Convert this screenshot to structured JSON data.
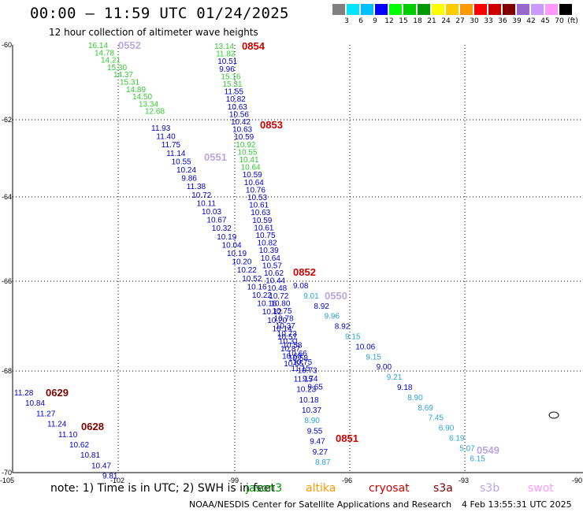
{
  "header": {
    "title": "00:00 – 11:59 UTC 01/24/2025",
    "subtitle": "12 hour collection of altimeter wave heights"
  },
  "colorbar": {
    "unit": "(ft)",
    "colors": [
      "#808080",
      "#00e5ff",
      "#00bfff",
      "#0000ff",
      "#00ff00",
      "#00cc00",
      "#009900",
      "#ffff00",
      "#ffcc00",
      "#ff9900",
      "#ff0000",
      "#cc0000",
      "#800000",
      "#9966cc",
      "#cc99ff",
      "#ff99ff",
      "#000000"
    ],
    "labels": [
      "3",
      "6",
      "9",
      "12",
      "15",
      "18",
      "21",
      "24",
      "27",
      "30",
      "33",
      "36",
      "39",
      "42",
      "45",
      "70"
    ]
  },
  "axes": {
    "y_labels": [
      "-60",
      "-62",
      "-64",
      "-66",
      "-68",
      "-70"
    ],
    "x_labels": [
      "-105",
      "-102",
      "-99",
      "-96",
      "-93",
      "-90"
    ]
  },
  "passes": [
    {
      "time": "0854",
      "color": "#cc0000"
    },
    {
      "time": "0853",
      "color": "#cc0000"
    },
    {
      "time": "0852",
      "color": "#cc0000"
    },
    {
      "time": "0851",
      "color": "#cc0000"
    },
    {
      "time": "0552",
      "color": "#b8a8e0"
    },
    {
      "time": "0551",
      "color": "#b8a8e0"
    },
    {
      "time": "0550",
      "color": "#b8a8e0"
    },
    {
      "time": "0549",
      "color": "#b8a8e0"
    },
    {
      "time": "0629",
      "color": "#800000"
    },
    {
      "time": "0628",
      "color": "#800000"
    }
  ],
  "tracks": {
    "green_upper": [
      "16.14",
      "14.78",
      "14.21",
      "15.30",
      "14.37",
      "15.31",
      "14.89",
      "14.50",
      "13.34",
      "12.68"
    ],
    "blue_diag": [
      "11.93",
      "11.40",
      "11.75",
      "11.14",
      "10.55",
      "10.24",
      "9.86",
      "11.38",
      "10.72",
      "10.11",
      "10.03",
      "10.67",
      "10.32",
      "10.19",
      "10.04",
      "10.19",
      "10.20",
      "10.22",
      "10.52",
      "10.16",
      "10.22",
      "10.16",
      "10.12",
      "10.20",
      "10.14",
      "10.57",
      "10.58",
      "10.66",
      "10.75",
      "10.73",
      "9.74",
      "9.65"
    ],
    "steep_a": [
      "13.14",
      "11.82",
      "10.51",
      "9.96",
      "15.16",
      "15.31",
      "11.55",
      "10.82",
      "10.63",
      "10.56",
      "10.42",
      "10.63",
      "10.59",
      "10.92",
      "10.55",
      "10.41",
      "10.64",
      "10.59",
      "10.64",
      "10.76",
      "10.53",
      "10.61",
      "10.63",
      "10.59",
      "10.61",
      "10.75",
      "10.82",
      "10.39",
      "10.64",
      "10.57",
      "10.62",
      "10.44",
      "10.48",
      "10.72",
      "10.80",
      "10.75",
      "10.78",
      "10.37",
      "10.73",
      "10.31",
      "10.87",
      "10.68",
      "10.55"
    ],
    "steep_b_low": [
      "10.58",
      "11.15",
      "11.15",
      "10.23",
      "10.18",
      "10.37",
      "8.90",
      "9.55",
      "9.47",
      "9.27",
      "8.87"
    ],
    "cyan_track": [
      "9.08",
      "9.01",
      "8.92",
      "9.96",
      "8.92",
      "9.15",
      "10.06",
      "9.15",
      "9.00",
      "9.21",
      "9.18",
      "8.90",
      "8.69",
      "7.45",
      "6.90",
      "6.19",
      "5.07",
      "6.15"
    ],
    "left_track": [
      "11.28",
      "10.84",
      "11.27",
      "11.24",
      "11.10",
      "10.62",
      "10.81",
      "10.47",
      "9.81"
    ]
  },
  "footer": {
    "note": "note: 1) Time is in UTC; 2) SWH is in feet",
    "satellites": [
      {
        "name": "jason3",
        "color": "#009900"
      },
      {
        "name": "altika",
        "color": "#ff9900"
      },
      {
        "name": "cryosat",
        "color": "#cc0000"
      },
      {
        "name": "s3a",
        "color": "#800000"
      },
      {
        "name": "s3b",
        "color": "#b8a8e0"
      },
      {
        "name": "swot",
        "color": "#ff99ff"
      }
    ],
    "credit": "NOAA/NESDIS Center for Satellite Applications and Research",
    "timestamp": "4 Feb 13:55:31 UTC 2025"
  }
}
